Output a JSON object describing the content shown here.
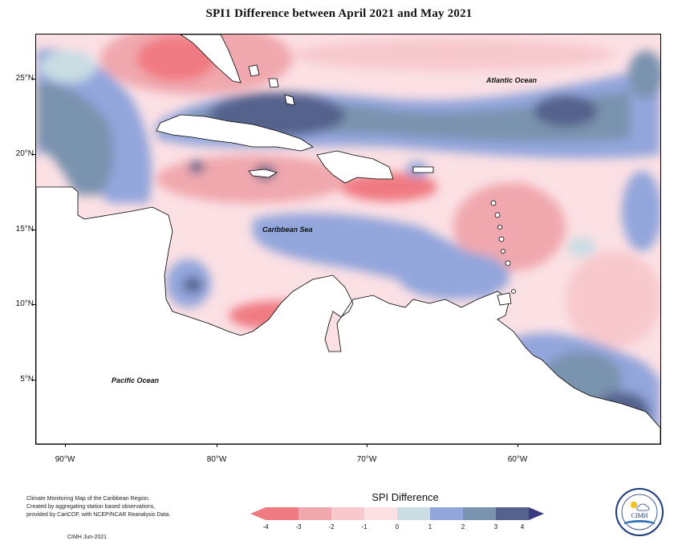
{
  "title": "SPI1 Difference between April 2021 and May 2021",
  "map": {
    "ocean_labels": [
      {
        "text": "Atlantic Ocean",
        "key": "atlantic"
      },
      {
        "text": "Caribbean Sea",
        "key": "caribbean"
      },
      {
        "text": "Pacific Ocean",
        "key": "pacific"
      }
    ],
    "lat_labels": [
      "25°N",
      "20°N",
      "15°N",
      "10°N",
      "5°N"
    ],
    "lon_labels": [
      "90°W",
      "80°W",
      "70°W",
      "60°W"
    ],
    "colors": {
      "neg4": "#f07a82",
      "neg3": "#f0a8ae",
      "neg2": "#f7c9cd",
      "neg1": "#fbe0e4",
      "zero": "#c9dde3",
      "pos1": "#93a6dc",
      "pos2": "#7a93ae",
      "pos3": "#55628c",
      "pos4": "#3a3a80",
      "land": "#ffffff"
    }
  },
  "legend": {
    "title": "SPI Difference",
    "ticks": [
      "-4",
      "-3",
      "-2",
      "-1",
      "0",
      "1",
      "2",
      "3",
      "4"
    ]
  },
  "credit": {
    "line1": "Climate Monitoring Map of the Caribbean Region.",
    "line2": "Created by aggregating station based observations,",
    "line3": "provided by CariCOF, with NCEP/NCAR Reanalysis Data.",
    "date": "CIMH Jun-2021"
  },
  "logo": {
    "text": "CIMH",
    "icon": "cimh-logo-icon"
  }
}
